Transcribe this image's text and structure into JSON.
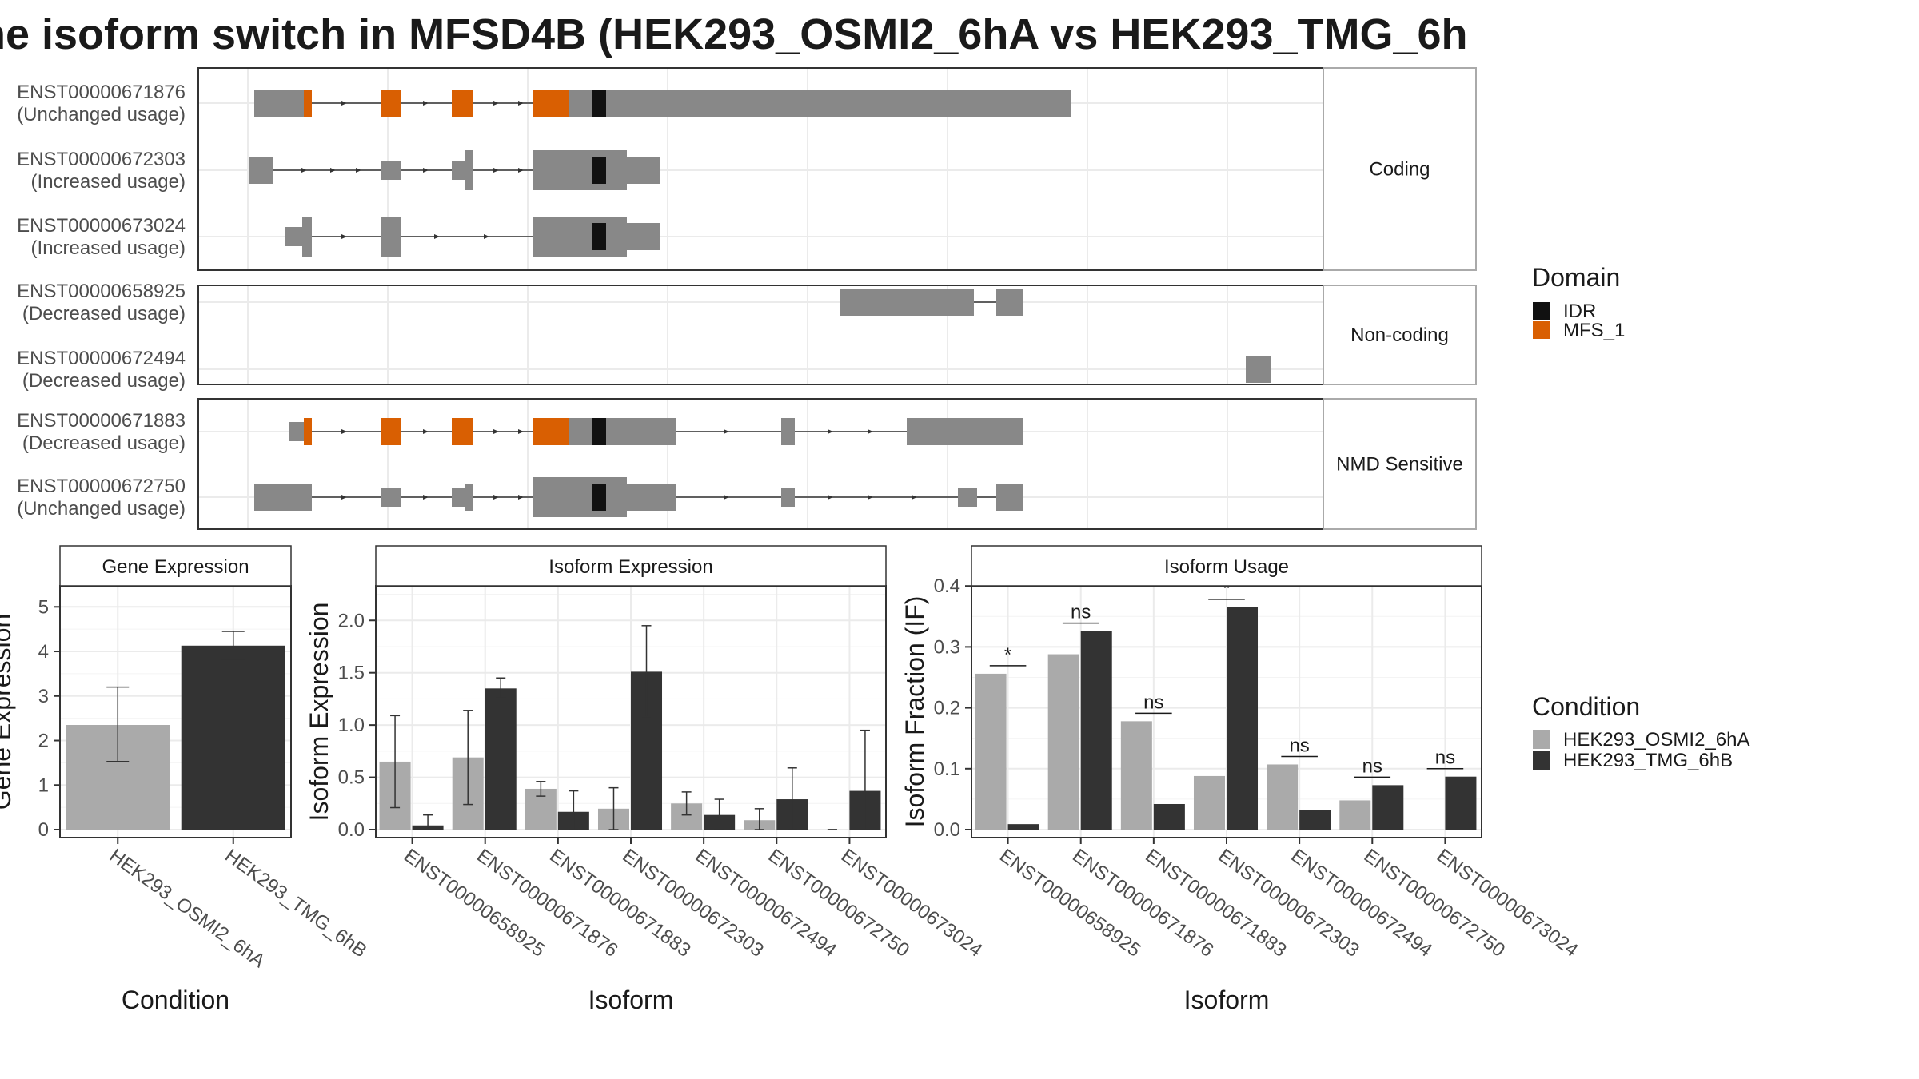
{
  "title": "he isoform switch in MFSD4B (HEK293_OSMI2_6hA vs HEK293_TMG_6h",
  "colors": {
    "exon": "#888888",
    "idr": "#111111",
    "mfs": "#D95F02",
    "cond_a": "#AAAAAA",
    "cond_b": "#333333",
    "grid": "#EBEBEB",
    "panel_border": "#333333",
    "strip_border": "#AAAAAA"
  },
  "transcripts": {
    "facets": [
      {
        "label": "Coding",
        "rows": [
          {
            "id": "ENST00000671876",
            "note": "(Unchanged usage)"
          },
          {
            "id": "ENST00000672303",
            "note": "(Increased usage)"
          },
          {
            "id": "ENST00000673024",
            "note": "(Increased usage)"
          }
        ]
      },
      {
        "label": "Non-coding",
        "rows": [
          {
            "id": "ENST00000658925",
            "note": "(Decreased usage)"
          },
          {
            "id": "ENST00000672494",
            "note": "(Decreased usage)"
          }
        ]
      },
      {
        "label": "NMD Sensitive",
        "rows": [
          {
            "id": "ENST00000671883",
            "note": "(Decreased usage)"
          },
          {
            "id": "ENST00000672750",
            "note": "(Unchanged usage)"
          }
        ]
      }
    ],
    "legend": {
      "title": "Domain",
      "items": [
        {
          "label": "IDR",
          "color": "#111111"
        },
        {
          "label": "MFS_1",
          "color": "#D95F02"
        }
      ]
    }
  },
  "condition_legend": {
    "title": "Condition",
    "items": [
      {
        "label": "HEK293_OSMI2_6hA",
        "color": "#AAAAAA"
      },
      {
        "label": "HEK293_TMG_6hB",
        "color": "#333333"
      }
    ]
  },
  "chart_data": [
    {
      "type": "bar",
      "title": "Gene Expression",
      "xlabel": "Condition",
      "ylabel": "Gene Expression",
      "ylim": [
        0,
        5.4
      ],
      "yticks": [
        "0",
        "1",
        "2",
        "3",
        "4",
        "5"
      ],
      "categories": [
        "HEK293_OSMI2_6hA",
        "HEK293_TMG_6hB"
      ],
      "values": [
        2.35,
        4.13
      ],
      "error": [
        [
          1.53,
          3.2
        ],
        [
          3.82,
          4.45
        ]
      ],
      "grid": true
    },
    {
      "type": "bar",
      "title": "Isoform Expression",
      "xlabel": "Isoform",
      "ylabel": "Isoform Expression",
      "ylim": [
        0,
        2.3
      ],
      "yticks": [
        "0.0",
        "0.5",
        "1.0",
        "1.5",
        "2.0"
      ],
      "categories": [
        "ENST00000658925",
        "ENST00000671876",
        "ENST00000671883",
        "ENST00000672303",
        "ENST00000672494",
        "ENST00000672750",
        "ENST00000673024"
      ],
      "series": [
        {
          "name": "HEK293_OSMI2_6hA",
          "values": [
            0.65,
            0.69,
            0.39,
            0.2,
            0.25,
            0.09,
            0.0
          ],
          "error": [
            [
              0.21,
              1.09
            ],
            [
              0.24,
              1.14
            ],
            [
              0.32,
              0.46
            ],
            [
              0.0,
              0.4
            ],
            [
              0.14,
              0.36
            ],
            [
              0.0,
              0.2
            ],
            [
              0.0,
              0.0
            ]
          ]
        },
        {
          "name": "HEK293_TMG_6hB",
          "values": [
            0.04,
            1.35,
            0.17,
            1.51,
            0.14,
            0.29,
            0.37
          ],
          "error": [
            [
              0.0,
              0.14
            ],
            [
              1.26,
              1.45
            ],
            [
              0.0,
              0.37
            ],
            [
              1.08,
              1.95
            ],
            [
              0.0,
              0.29
            ],
            [
              0.0,
              0.59
            ],
            [
              0.0,
              0.95
            ]
          ]
        }
      ],
      "grid": true
    },
    {
      "type": "bar",
      "title": "Isoform Usage",
      "xlabel": "Isoform",
      "ylabel": "Isoform Fraction (IF)",
      "ylim": [
        0,
        0.395
      ],
      "yticks": [
        "0.0",
        "0.1",
        "0.2",
        "0.3",
        "0.4"
      ],
      "categories": [
        "ENST00000658925",
        "ENST00000671876",
        "ENST00000671883",
        "ENST00000672303",
        "ENST00000672494",
        "ENST00000672750",
        "ENST00000673024"
      ],
      "series": [
        {
          "name": "HEK293_OSMI2_6hA",
          "values": [
            0.256,
            0.288,
            0.178,
            0.088,
            0.107,
            0.048,
            0.0
          ]
        },
        {
          "name": "HEK293_TMG_6hB",
          "values": [
            0.009,
            0.326,
            0.042,
            0.365,
            0.032,
            0.073,
            0.087
          ]
        }
      ],
      "significance": [
        "*",
        "ns",
        "ns",
        "*",
        "ns",
        "ns",
        "ns"
      ],
      "grid": true
    }
  ]
}
